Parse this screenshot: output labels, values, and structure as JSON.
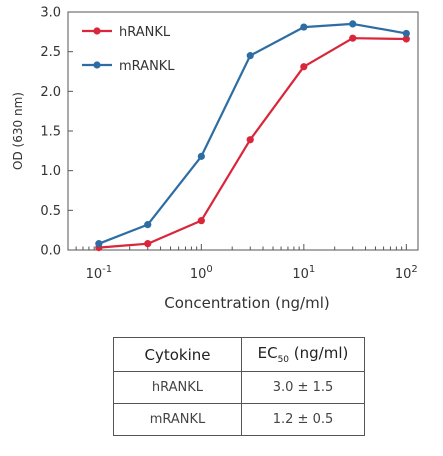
{
  "chart_data": {
    "type": "line",
    "xlabel": "Concentration (ng/ml)",
    "ylabel": "OD (630 nm)",
    "x_scale": "log",
    "xlim": [
      0.05,
      130
    ],
    "ylim": [
      0,
      3.0
    ],
    "x_ticks": [
      {
        "base": "10",
        "exp": "-1",
        "value": 0.1
      },
      {
        "base": "10",
        "exp": "0",
        "value": 1
      },
      {
        "base": "10",
        "exp": "1",
        "value": 10
      },
      {
        "base": "10",
        "exp": "2",
        "value": 100
      }
    ],
    "y_ticks": [
      "0.0",
      "0.5",
      "1.0",
      "1.5",
      "2.0",
      "2.5",
      "3.0"
    ],
    "grid": false,
    "legend_position": "top-left",
    "series": [
      {
        "name": "hRANKL",
        "color": "#d9263a",
        "x": [
          0.1,
          0.3,
          1,
          3,
          10,
          30,
          100
        ],
        "y": [
          0.03,
          0.08,
          0.37,
          1.39,
          2.31,
          2.67,
          2.66
        ]
      },
      {
        "name": "mRANKL",
        "color": "#2e6da4",
        "x": [
          0.1,
          0.3,
          1,
          3,
          10,
          30,
          100
        ],
        "y": [
          0.08,
          0.32,
          1.18,
          2.45,
          2.81,
          2.85,
          2.73
        ]
      }
    ]
  },
  "table": {
    "header_cytokine": "Cytokine",
    "header_ec_main": "EC",
    "header_ec_sub": "50",
    "header_ec_unit": " (ng/ml)",
    "rows": [
      {
        "cytokine": "hRANKL",
        "ec50": "3.0 ± 1.5"
      },
      {
        "cytokine": "mRANKL",
        "ec50": "1.2 ± 0.5"
      }
    ]
  }
}
